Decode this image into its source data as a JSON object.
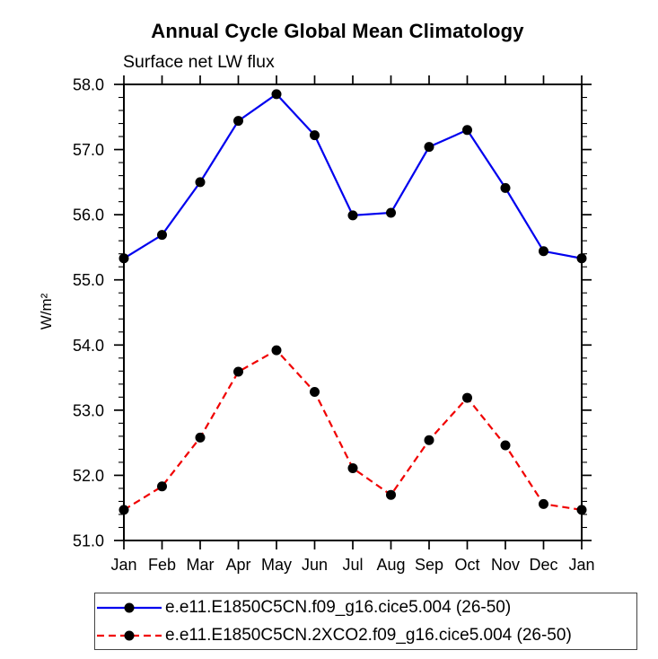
{
  "title": "Annual Cycle Global Mean Climatology",
  "subtitle": "Surface net LW flux",
  "chart_data": {
    "type": "line",
    "title": "Annual Cycle Global Mean Climatology",
    "subtitle": "Surface net LW flux",
    "ylabel": "W/m²",
    "xlabel": "",
    "categories": [
      "Jan",
      "Feb",
      "Mar",
      "Apr",
      "May",
      "Jun",
      "Jul",
      "Aug",
      "Sep",
      "Oct",
      "Nov",
      "Dec",
      "Jan"
    ],
    "series": [
      {
        "name": "e.e11.E1850C5CN.f09_g16.cice5.004 (26-50)",
        "color": "#0000ee",
        "line_style": "solid",
        "marker": "circle",
        "marker_color": "#000000",
        "values": [
          55.33,
          55.69,
          56.5,
          57.44,
          57.85,
          57.22,
          55.99,
          56.03,
          57.04,
          57.3,
          56.41,
          55.44,
          55.33
        ]
      },
      {
        "name": "e.e11.E1850C5CN.2XCO2.f09_g16.cice5.004 (26-50)",
        "color": "#f00000",
        "line_style": "dashed",
        "marker": "circle",
        "marker_color": "#000000",
        "values": [
          51.47,
          51.83,
          52.58,
          53.59,
          53.92,
          53.28,
          52.11,
          51.7,
          52.54,
          53.19,
          52.46,
          51.56,
          51.47
        ]
      }
    ],
    "ylim": [
      51.0,
      58.0
    ],
    "ytick_step": 1.0,
    "ytick_format_decimals": 1,
    "yminor_step": 0.2,
    "axis_color": "#000000",
    "grid": false,
    "legend_position": "bottom"
  }
}
